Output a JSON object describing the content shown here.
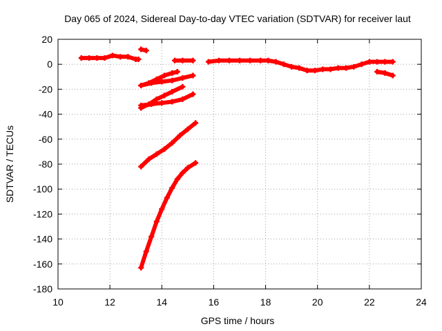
{
  "chart_data": {
    "type": "scatter",
    "title": "Day 065 of 2024, Sidereal Day-to-day VTEC variation (SDTVAR) for receiver laut",
    "xlabel": "GPS time / hours",
    "ylabel": "SDTVAR / TECUs",
    "xlim": [
      10,
      24
    ],
    "ylim": [
      -180,
      20
    ],
    "xticks": [
      10,
      12,
      14,
      16,
      18,
      20,
      22,
      24
    ],
    "yticks": [
      20,
      0,
      -20,
      -40,
      -60,
      -80,
      -100,
      -120,
      -140,
      -160,
      -180
    ],
    "grid": true,
    "marker_color": "#ff0000",
    "series": [
      {
        "points": [
          [
            10.9,
            5
          ],
          [
            11.2,
            5
          ],
          [
            11.5,
            5
          ],
          [
            11.8,
            5
          ],
          [
            12.1,
            7
          ],
          [
            12.4,
            6
          ],
          [
            12.7,
            6
          ],
          [
            13.0,
            4
          ],
          [
            13.1,
            4
          ]
        ]
      },
      {
        "points": [
          [
            13.2,
            12
          ],
          [
            13.4,
            11
          ]
        ]
      },
      {
        "points": [
          [
            14.5,
            3
          ],
          [
            14.8,
            3
          ],
          [
            15.2,
            3
          ]
        ]
      },
      {
        "points": [
          [
            15.8,
            2
          ],
          [
            16.2,
            3
          ],
          [
            16.6,
            3
          ],
          [
            17.0,
            3
          ],
          [
            17.4,
            3
          ],
          [
            17.8,
            3
          ],
          [
            18.1,
            3
          ],
          [
            18.4,
            2
          ],
          [
            18.7,
            0
          ],
          [
            19.0,
            -2
          ],
          [
            19.3,
            -3
          ],
          [
            19.6,
            -5
          ],
          [
            19.9,
            -5
          ],
          [
            20.2,
            -4
          ],
          [
            20.5,
            -4
          ],
          [
            20.8,
            -3
          ],
          [
            21.1,
            -3
          ],
          [
            21.4,
            -2
          ],
          [
            21.7,
            0
          ],
          [
            22.0,
            2
          ],
          [
            22.3,
            2
          ],
          [
            22.6,
            2
          ],
          [
            22.9,
            2
          ]
        ]
      },
      {
        "points": [
          [
            22.3,
            -6
          ],
          [
            22.6,
            -7
          ],
          [
            22.9,
            -9
          ]
        ]
      },
      {
        "points": [
          [
            13.2,
            -17
          ],
          [
            13.5,
            -15
          ],
          [
            13.8,
            -12
          ],
          [
            14.1,
            -9
          ],
          [
            14.4,
            -7
          ],
          [
            14.6,
            -6
          ]
        ]
      },
      {
        "points": [
          [
            13.2,
            -17
          ],
          [
            13.6,
            -15
          ],
          [
            14.0,
            -14
          ],
          [
            14.4,
            -13
          ],
          [
            14.8,
            -11
          ],
          [
            15.2,
            -9
          ]
        ]
      },
      {
        "points": [
          [
            13.2,
            -35
          ],
          [
            13.5,
            -32
          ],
          [
            13.8,
            -28
          ],
          [
            14.1,
            -25
          ],
          [
            14.4,
            -22
          ],
          [
            14.8,
            -18
          ]
        ]
      },
      {
        "points": [
          [
            13.2,
            -33
          ],
          [
            13.6,
            -32
          ],
          [
            14.0,
            -31
          ],
          [
            14.4,
            -30
          ],
          [
            14.8,
            -28
          ],
          [
            15.2,
            -24
          ]
        ]
      },
      {
        "points": [
          [
            13.2,
            -82
          ],
          [
            13.5,
            -76
          ],
          [
            13.8,
            -72
          ],
          [
            14.1,
            -68
          ],
          [
            14.4,
            -63
          ],
          [
            14.7,
            -57
          ],
          [
            15.0,
            -52
          ],
          [
            15.3,
            -47
          ]
        ]
      },
      {
        "points": [
          [
            13.2,
            -163
          ],
          [
            13.4,
            -150
          ],
          [
            13.6,
            -138
          ],
          [
            13.8,
            -126
          ],
          [
            14.0,
            -116
          ],
          [
            14.2,
            -107
          ],
          [
            14.4,
            -99
          ],
          [
            14.6,
            -92
          ],
          [
            14.8,
            -87
          ],
          [
            15.0,
            -83
          ],
          [
            15.3,
            -79
          ]
        ]
      }
    ]
  }
}
